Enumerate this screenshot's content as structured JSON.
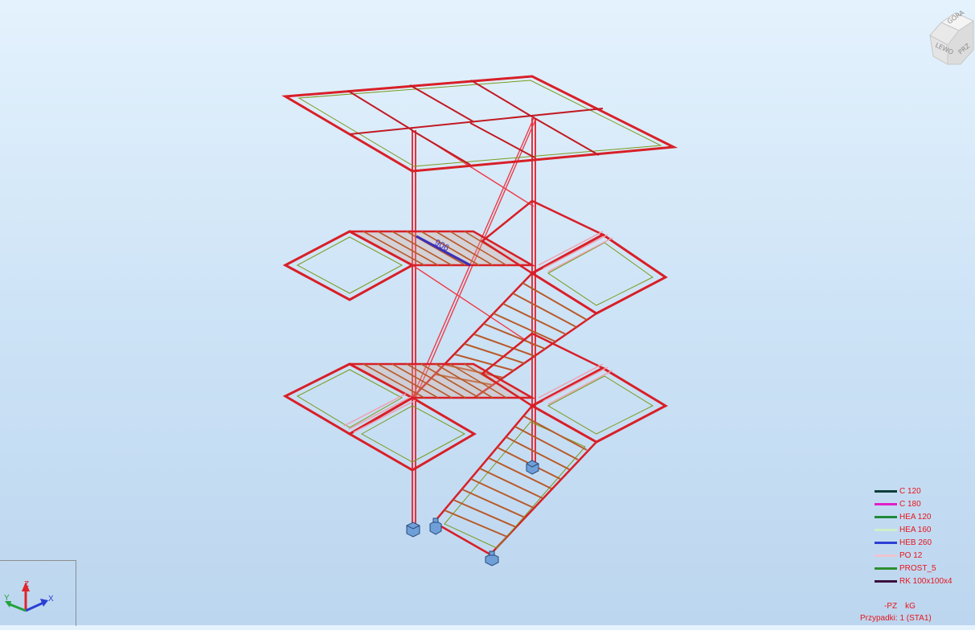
{
  "viewcube": {
    "faces": [
      "GÓRA",
      "LEWO",
      "PRZ"
    ]
  },
  "axes": {
    "x": "X",
    "y": "Y",
    "z": "Z"
  },
  "highlight_label": "906",
  "legend": [
    {
      "label": "C 120",
      "color": "#0f3d3a"
    },
    {
      "label": "C 180",
      "color": "#e020c8"
    },
    {
      "label": "HEA 120",
      "color": "#1f8a3a"
    },
    {
      "label": "HEA 160",
      "color": "#cfeecb"
    },
    {
      "label": "HEB 260",
      "color": "#2c3fd6"
    },
    {
      "label": "PO 12",
      "color": "#f0c2cf"
    },
    {
      "label": "PROST_5",
      "color": "#2e8f2e"
    },
    {
      "label": "RK 100x100x4",
      "color": "#3a0f3e"
    }
  ],
  "units": {
    "direction": "-PZ",
    "unit": "kG"
  },
  "cases": "Przypadki: 1 (STA1)"
}
